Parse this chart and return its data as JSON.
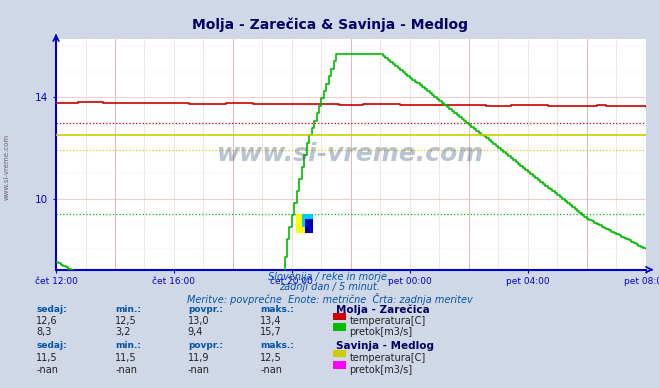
{
  "title": "Molja - Zarečica & Savinja - Medlog",
  "subtitle1": "Slovenija / reke in morje.",
  "subtitle2": "zadnji dan / 5 minut.",
  "subtitle3": "Meritve: povprečne  Enote: metrične  Črta: zadnja meritev",
  "watermark": "www.si-vreme.com",
  "bg_color": "#d0d8e8",
  "plot_bg_color": "#ffffff",
  "molja_temp_color": "#cc0000",
  "molja_flow_color": "#00bb00",
  "savinja_temp_color": "#cccc00",
  "savinja_flow_color": "#ff00ff",
  "axis_color": "#0000cc",
  "title_color": "#000066",
  "info_color": "#0055aa",
  "molja_temp_avg": 13.0,
  "molja_flow_avg": 9.4,
  "savinja_temp_avg": 11.9,
  "ylim_min": 7.2,
  "ylim_max": 16.3,
  "yticks": [
    10,
    14
  ],
  "molja_temp_current": "12,6",
  "molja_temp_min": "12,5",
  "molja_temp_avg_str": "13,0",
  "molja_temp_max": "13,4",
  "molja_flow_current": "8,3",
  "molja_flow_min": "3,2",
  "molja_flow_avg_str": "9,4",
  "molja_flow_max": "15,7",
  "savinja_temp_current": "11,5",
  "savinja_temp_min": "11,5",
  "savinja_temp_avg_str": "11,9",
  "savinja_temp_max": "12,5",
  "savinja_flow_current": "-nan",
  "savinja_flow_min": "-nan",
  "savinja_flow_avg_str": "-nan",
  "savinja_flow_max": "-nan"
}
